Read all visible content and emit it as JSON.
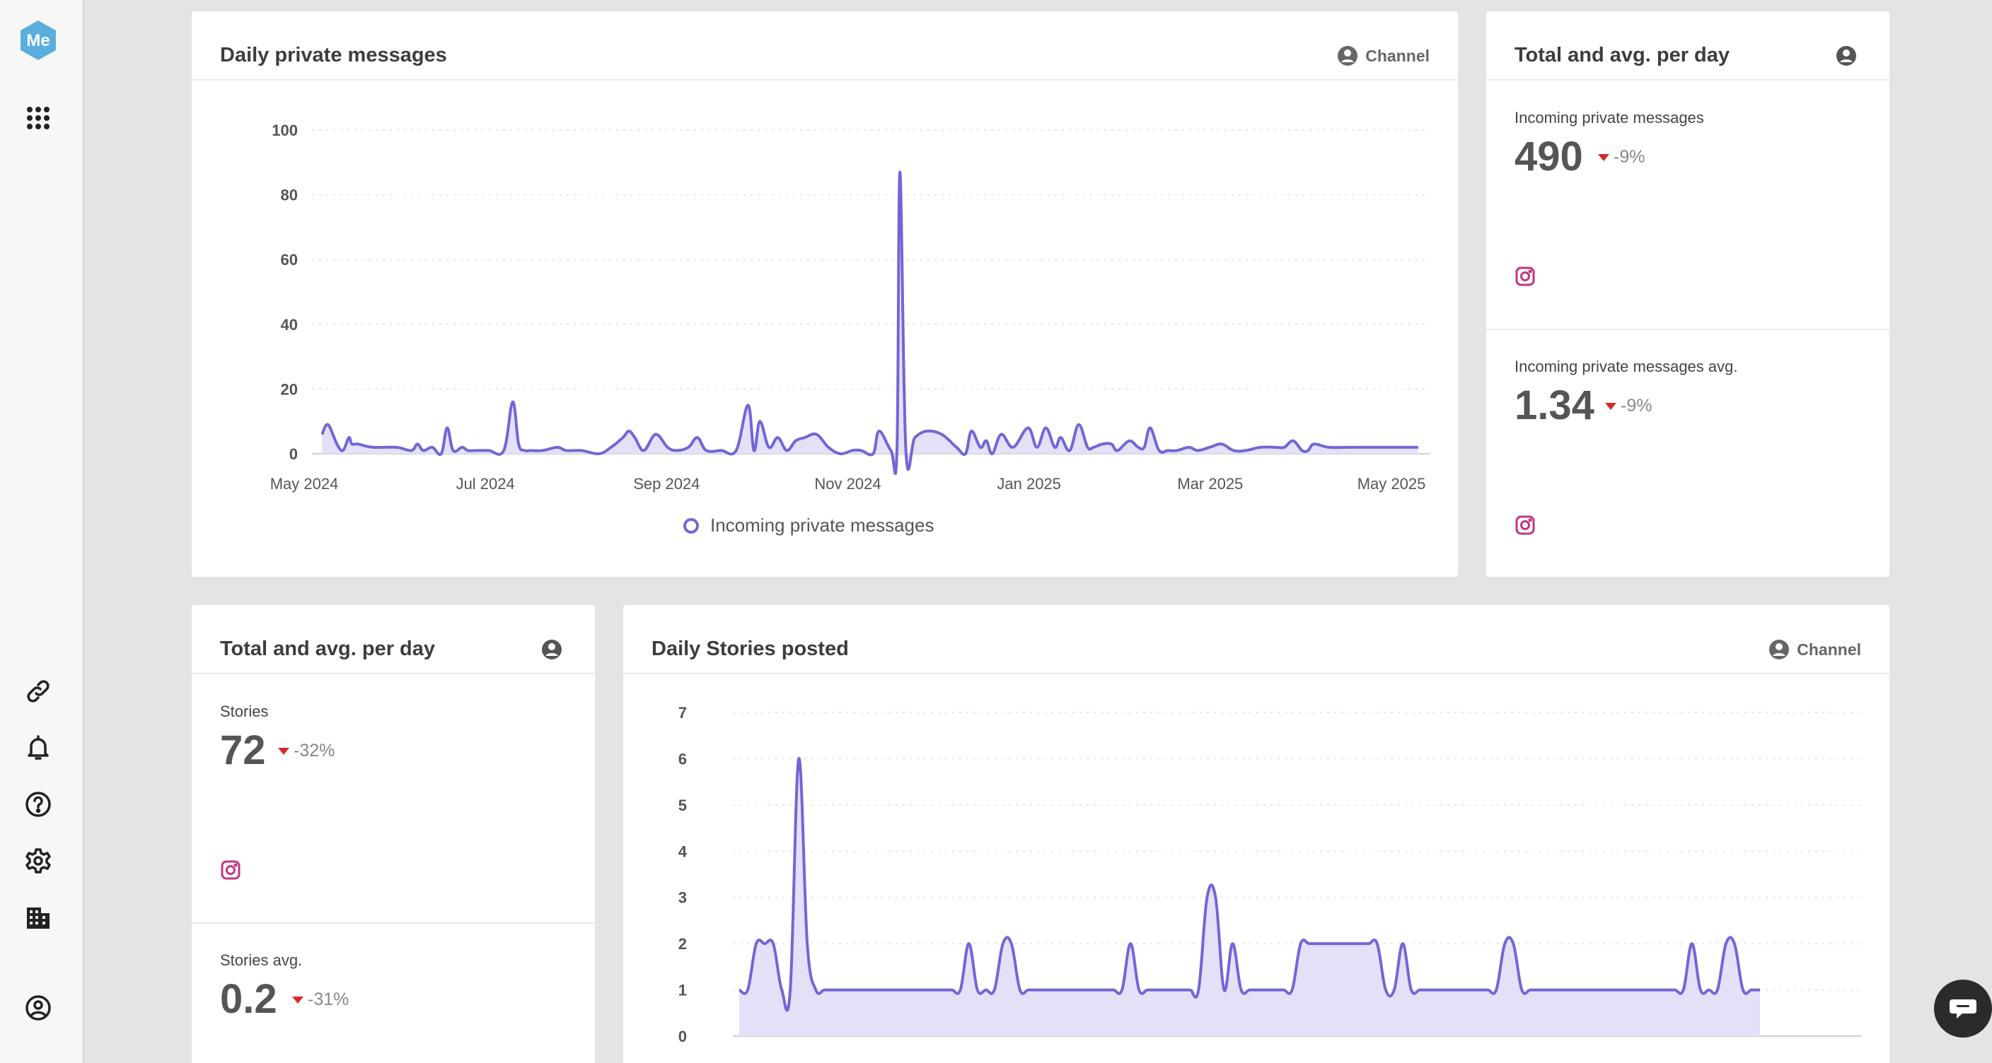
{
  "sidebar": {
    "logo_text": "Me",
    "icons": [
      "apps-grid-icon",
      "link-icon",
      "bell-icon",
      "help-icon",
      "gear-icon",
      "building-icon",
      "user-circle-icon"
    ]
  },
  "colors": {
    "line": "#7266d6",
    "fill": "#e3e1f8",
    "instagram": "#c13584",
    "negative": "#d62828"
  },
  "messages_chart": {
    "title": "Daily private messages",
    "channel_label": "Channel",
    "legend": "Incoming private messages"
  },
  "messages_totals": {
    "title": "Total and avg. per day",
    "total": {
      "label": "Incoming private messages",
      "value": "490",
      "delta": "-9%",
      "icon": "instagram-icon"
    },
    "avg": {
      "label": "Incoming private messages avg.",
      "value": "1.34",
      "delta": "-9%",
      "icon": "instagram-icon"
    }
  },
  "stories_totals": {
    "title": "Total and avg. per day",
    "total": {
      "label": "Stories",
      "value": "72",
      "delta": "-32%",
      "icon": "instagram-icon"
    },
    "avg": {
      "label": "Stories avg.",
      "value": "0.2",
      "delta": "-31%"
    }
  },
  "stories_chart": {
    "title": "Daily Stories posted",
    "channel_label": "Channel"
  },
  "chart_data": [
    {
      "type": "area",
      "title": "Daily private messages",
      "series": [
        {
          "name": "Incoming private messages",
          "x": [
            "2024-05-07",
            "2024-05-09",
            "2024-05-12",
            "2024-05-14",
            "2024-05-16",
            "2024-05-17",
            "2024-05-19",
            "2024-05-24",
            "2024-06-01",
            "2024-06-06",
            "2024-06-08",
            "2024-06-10",
            "2024-06-13",
            "2024-06-16",
            "2024-06-18",
            "2024-06-20",
            "2024-06-23",
            "2024-06-25",
            "2024-06-28",
            "2024-07-02",
            "2024-07-07",
            "2024-07-10",
            "2024-07-12",
            "2024-07-14",
            "2024-07-16",
            "2024-07-20",
            "2024-07-25",
            "2024-07-28",
            "2024-08-02",
            "2024-08-08",
            "2024-08-12",
            "2024-08-16",
            "2024-08-18",
            "2024-08-20",
            "2024-08-23",
            "2024-08-27",
            "2024-08-31",
            "2024-09-03",
            "2024-09-07",
            "2024-09-10",
            "2024-09-13",
            "2024-09-18",
            "2024-09-23",
            "2024-09-27",
            "2024-09-29",
            "2024-10-01",
            "2024-10-04",
            "2024-10-07",
            "2024-10-10",
            "2024-10-13",
            "2024-10-16",
            "2024-10-20",
            "2024-10-24",
            "2024-10-28",
            "2024-11-01",
            "2024-11-04",
            "2024-11-08",
            "2024-11-10",
            "2024-11-14",
            "2024-11-16",
            "2024-11-17",
            "2024-11-19",
            "2024-11-22",
            "2024-11-26",
            "2024-12-01",
            "2024-12-06",
            "2024-12-09",
            "2024-12-11",
            "2024-12-14",
            "2024-12-16",
            "2024-12-18",
            "2024-12-21",
            "2024-12-25",
            "2024-12-30",
            "2025-01-02",
            "2025-01-05",
            "2025-01-08",
            "2025-01-10",
            "2025-01-13",
            "2025-01-16",
            "2025-01-19",
            "2025-01-21",
            "2025-01-24",
            "2025-01-27",
            "2025-01-29",
            "2025-02-02",
            "2025-02-05",
            "2025-02-07",
            "2025-02-09",
            "2025-02-12",
            "2025-02-15",
            "2025-02-18",
            "2025-02-22",
            "2025-02-25",
            "2025-03-01",
            "2025-03-05",
            "2025-03-09",
            "2025-03-13",
            "2025-03-18",
            "2025-03-23",
            "2025-03-26",
            "2025-03-29",
            "2025-04-01",
            "2025-04-03",
            "2025-04-05",
            "2025-04-10",
            "2025-04-18",
            "2025-04-27",
            "2025-05-03",
            "2025-05-10"
          ],
          "values": [
            6,
            9,
            3,
            1,
            5,
            3,
            3,
            2,
            2,
            1,
            3,
            1,
            2,
            0,
            8,
            1,
            2,
            1,
            1,
            1,
            1,
            16,
            3,
            1,
            1,
            1,
            2,
            1,
            1,
            0,
            2,
            5,
            7,
            5,
            1,
            6,
            2,
            1,
            2,
            5,
            1,
            1,
            1,
            15,
            1,
            10,
            2,
            5,
            1,
            4,
            5,
            6,
            2,
            0,
            1,
            1,
            0,
            7,
            1,
            1,
            87,
            1,
            5,
            7,
            6,
            2,
            0,
            7,
            2,
            4,
            0,
            6,
            2,
            8,
            2,
            8,
            2,
            5,
            1,
            9,
            2,
            2,
            3,
            3,
            1,
            4,
            2,
            2,
            8,
            1,
            1,
            1,
            2,
            1,
            2,
            3,
            1,
            1,
            2,
            2,
            2,
            4,
            1,
            1,
            3,
            2,
            2,
            2,
            2,
            2
          ]
        }
      ],
      "ylim": [
        0,
        100
      ],
      "yticks": [
        0,
        20,
        40,
        60,
        80,
        100
      ],
      "xticks": [
        "May 2024",
        "Jul 2024",
        "Sep 2024",
        "Nov 2024",
        "Jan 2025",
        "Mar 2025",
        "May 2025"
      ],
      "grid": true,
      "legend": "bottom"
    },
    {
      "type": "area",
      "title": "Daily Stories posted",
      "series": [
        {
          "values": [
            1,
            1,
            2,
            2,
            2,
            1,
            1,
            6,
            2,
            1,
            1,
            1,
            1,
            1,
            1,
            1,
            1,
            1,
            1,
            1,
            1,
            1,
            1,
            1,
            1,
            1,
            1,
            2,
            1,
            1,
            1,
            2,
            2,
            1,
            1,
            1,
            1,
            1,
            1,
            1,
            1,
            1,
            1,
            1,
            1,
            1,
            2,
            1,
            1,
            1,
            1,
            1,
            1,
            1,
            1,
            3,
            3,
            1,
            2,
            1,
            1,
            1,
            1,
            1,
            1,
            1,
            2,
            2,
            2,
            2,
            2,
            2,
            2,
            2,
            2,
            2,
            1,
            1,
            2,
            1,
            1,
            1,
            1,
            1,
            1,
            1,
            1,
            1,
            1,
            1,
            2,
            2,
            1,
            1,
            1,
            1,
            1,
            1,
            1,
            1,
            1,
            1,
            1,
            1,
            1,
            1,
            1,
            1,
            1,
            1,
            1,
            1,
            2,
            1,
            1,
            1,
            2,
            2,
            1,
            1,
            1
          ]
        }
      ],
      "ylim": [
        0,
        7
      ],
      "yticks": [
        0,
        1,
        2,
        3,
        4,
        5,
        6,
        7
      ],
      "grid": true
    }
  ]
}
